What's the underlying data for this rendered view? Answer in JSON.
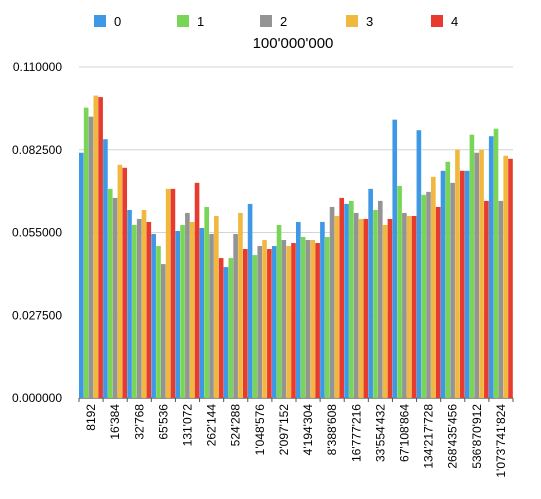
{
  "chart_data": {
    "type": "bar",
    "title": "100'000'000",
    "xlabel": "",
    "ylabel": "",
    "ylim": [
      0,
      0.11
    ],
    "yticks": [
      "0.000000",
      "0.027500",
      "0.055000",
      "0.082500",
      "0.110000"
    ],
    "ytick_values": [
      0,
      0.0275,
      0.055,
      0.0825,
      0.11
    ],
    "grid": true,
    "legend": "top",
    "categories": [
      "8192",
      "16'384",
      "32'768",
      "65'536",
      "131'072",
      "262'144",
      "524'288",
      "1'048'576",
      "2'097'152",
      "4'194'304",
      "8'388'608",
      "16'777'216",
      "33'554'432",
      "67'108'864",
      "134'217'728",
      "268'435'456",
      "536'870'912",
      "1'073'741'824"
    ],
    "series": [
      {
        "name": "0",
        "color": "#3f98e5",
        "values": [
          0.0815,
          0.086,
          0.0625,
          0.0545,
          0.0555,
          0.0565,
          0.0435,
          0.0645,
          0.0505,
          0.0585,
          0.0585,
          0.0645,
          0.0695,
          0.0925,
          0.089,
          0.0755,
          0.0755,
          0.087
        ]
      },
      {
        "name": "1",
        "color": "#78d556",
        "values": [
          0.0965,
          0.0695,
          0.0575,
          0.0505,
          0.0575,
          0.0635,
          0.0465,
          0.0475,
          0.0575,
          0.0535,
          0.0535,
          0.0655,
          0.0625,
          0.0705,
          0.0675,
          0.0785,
          0.0875,
          0.0895
        ]
      },
      {
        "name": "2",
        "color": "#949494",
        "values": [
          0.0935,
          0.0665,
          0.0595,
          0.0445,
          0.0615,
          0.0545,
          0.0545,
          0.0505,
          0.0525,
          0.0525,
          0.0635,
          0.0615,
          0.0655,
          0.0615,
          0.0685,
          0.0715,
          0.0815,
          0.0655
        ]
      },
      {
        "name": "3",
        "color": "#f1b840",
        "values": [
          0.1005,
          0.0775,
          0.0625,
          0.0695,
          0.0585,
          0.0605,
          0.0615,
          0.0525,
          0.0505,
          0.0525,
          0.0605,
          0.0595,
          0.0575,
          0.0605,
          0.0735,
          0.0825,
          0.0825,
          0.0805
        ]
      },
      {
        "name": "4",
        "color": "#e63b2e",
        "values": [
          0.1,
          0.0765,
          0.0585,
          0.0695,
          0.0715,
          0.0465,
          0.0495,
          0.0495,
          0.0515,
          0.0515,
          0.0665,
          0.0595,
          0.0595,
          0.0605,
          0.0635,
          0.0755,
          0.0655,
          0.0795
        ]
      }
    ]
  }
}
